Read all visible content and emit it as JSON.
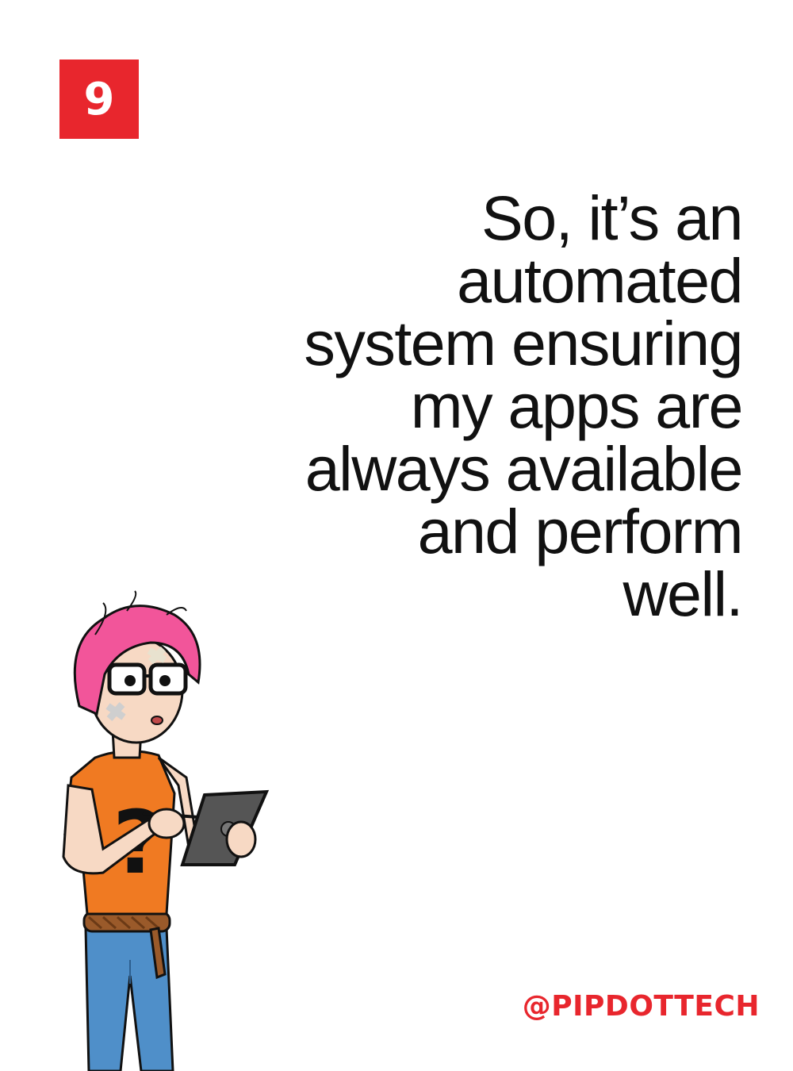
{
  "badge": {
    "number": "9",
    "color": "#e8262d"
  },
  "quote": {
    "lines": [
      "So, it’s an",
      "automated",
      "system ensuring",
      "my apps are",
      "always available",
      "and perform",
      "well."
    ]
  },
  "handle": "@PIPDOTTECH",
  "accent_color": "#e8262d"
}
